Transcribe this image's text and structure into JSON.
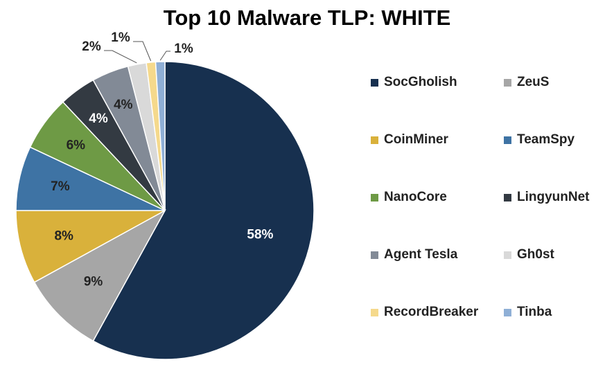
{
  "chart_data": {
    "type": "pie",
    "title": "Top 10 Malware TLP: WHITE",
    "legend_position": "right",
    "slices": [
      {
        "label": "SocGholish",
        "value": 58,
        "display": "58%",
        "color": "#17304F"
      },
      {
        "label": "ZeuS",
        "value": 9,
        "display": "9%",
        "color": "#A6A6A6"
      },
      {
        "label": "CoinMiner",
        "value": 8,
        "display": "8%",
        "color": "#D9B13B"
      },
      {
        "label": "TeamSpy",
        "value": 7,
        "display": "7%",
        "color": "#3E73A4"
      },
      {
        "label": "NanoCore",
        "value": 6,
        "display": "6%",
        "color": "#6E9A45"
      },
      {
        "label": "LingyunNet",
        "value": 4,
        "display": "4%",
        "color": "#333A42"
      },
      {
        "label": "Agent Tesla",
        "value": 4,
        "display": "4%",
        "color": "#828A96"
      },
      {
        "label": "Gh0st",
        "value": 2,
        "display": "2%",
        "color": "#D9D9D9"
      },
      {
        "label": "RecordBreaker",
        "value": 1,
        "display": "1%",
        "color": "#F5D98C"
      },
      {
        "label": "Tinba",
        "value": 1,
        "display": "1%",
        "color": "#8FAFD6"
      }
    ]
  }
}
